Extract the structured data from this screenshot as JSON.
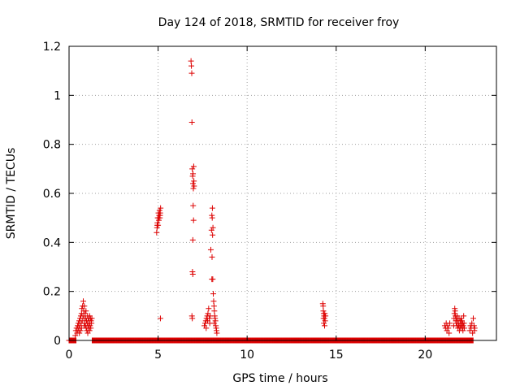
{
  "chart_data": {
    "type": "scatter",
    "title": "Day 124 of 2018, SRMTID for receiver froy",
    "xlabel": "GPS time / hours",
    "ylabel": "SRMTID / TECUs",
    "xlim": [
      0,
      24
    ],
    "ylim": [
      0,
      1.2
    ],
    "grid": true,
    "legend": "none",
    "marker": "+",
    "color": "#dd0000",
    "x_ticks": [
      0,
      5,
      10,
      15,
      20
    ],
    "x_tick_labels": [
      "0",
      "5",
      "10",
      "15",
      "20"
    ],
    "y_ticks": [
      0,
      0.2,
      0.4,
      0.6,
      0.8,
      1.0,
      1.2
    ],
    "y_tick_labels": [
      "0",
      "0.2",
      "0.4",
      "0.6",
      "0.8",
      "1",
      "1.2"
    ],
    "baseline": {
      "y": 0.0,
      "segments": [
        [
          0.0,
          0.4
        ],
        [
          1.3,
          22.7
        ]
      ],
      "step": 0.03
    },
    "series": [
      {
        "name": "SRMTID",
        "points": [
          [
            0.35,
            0.02
          ],
          [
            0.38,
            0.04
          ],
          [
            0.42,
            0.05
          ],
          [
            0.45,
            0.03
          ],
          [
            0.48,
            0.06
          ],
          [
            0.5,
            0.04
          ],
          [
            0.52,
            0.07
          ],
          [
            0.55,
            0.05
          ],
          [
            0.57,
            0.08
          ],
          [
            0.6,
            0.06
          ],
          [
            0.62,
            0.09
          ],
          [
            0.64,
            0.04
          ],
          [
            0.66,
            0.1
          ],
          [
            0.68,
            0.07
          ],
          [
            0.7,
            0.11
          ],
          [
            0.72,
            0.13
          ],
          [
            0.74,
            0.08
          ],
          [
            0.76,
            0.14
          ],
          [
            0.78,
            0.1
          ],
          [
            0.8,
            0.16
          ],
          [
            0.82,
            0.12
          ],
          [
            0.84,
            0.09
          ],
          [
            0.86,
            0.14
          ],
          [
            0.88,
            0.07
          ],
          [
            0.9,
            0.11
          ],
          [
            0.92,
            0.06
          ],
          [
            0.94,
            0.09
          ],
          [
            0.96,
            0.05
          ],
          [
            0.98,
            0.08
          ],
          [
            1.0,
            0.04
          ],
          [
            1.02,
            0.07
          ],
          [
            1.04,
            0.1
          ],
          [
            1.06,
            0.06
          ],
          [
            1.08,
            0.09
          ],
          [
            1.1,
            0.05
          ],
          [
            1.12,
            0.08
          ],
          [
            1.14,
            0.07
          ],
          [
            1.16,
            0.1
          ],
          [
            1.18,
            0.06
          ],
          [
            1.2,
            0.09
          ],
          [
            1.22,
            0.05
          ],
          [
            1.24,
            0.08
          ],
          [
            1.26,
            0.07
          ],
          [
            1.28,
            0.09
          ],
          [
            0.58,
            0.03
          ],
          [
            0.7,
            0.05
          ],
          [
            0.85,
            0.06
          ],
          [
            0.95,
            0.12
          ],
          [
            1.05,
            0.03
          ],
          [
            1.15,
            0.04
          ],
          [
            4.92,
            0.44
          ],
          [
            4.94,
            0.46
          ],
          [
            4.96,
            0.48
          ],
          [
            4.98,
            0.5
          ],
          [
            5.0,
            0.47
          ],
          [
            5.02,
            0.52
          ],
          [
            5.04,
            0.49
          ],
          [
            5.06,
            0.51
          ],
          [
            5.08,
            0.53
          ],
          [
            5.1,
            0.5
          ],
          [
            5.12,
            0.52
          ],
          [
            5.14,
            0.54
          ],
          [
            4.95,
            0.47
          ],
          [
            5.03,
            0.5
          ],
          [
            5.11,
            0.51
          ],
          [
            5.13,
            0.09
          ],
          [
            6.85,
            1.14
          ],
          [
            6.87,
            1.12
          ],
          [
            6.89,
            1.09
          ],
          [
            6.9,
            0.89
          ],
          [
            6.92,
            0.7
          ],
          [
            6.94,
            0.67
          ],
          [
            6.96,
            0.64
          ],
          [
            6.98,
            0.62
          ],
          [
            7.0,
            0.71
          ],
          [
            6.97,
            0.55
          ],
          [
            6.99,
            0.49
          ],
          [
            6.95,
            0.41
          ],
          [
            6.93,
            0.28
          ],
          [
            6.95,
            0.27
          ],
          [
            6.9,
            0.1
          ],
          [
            6.92,
            0.09
          ],
          [
            6.96,
            0.68
          ],
          [
            7.01,
            0.65
          ],
          [
            7.02,
            0.63
          ],
          [
            7.6,
            0.06
          ],
          [
            7.64,
            0.07
          ],
          [
            7.68,
            0.08
          ],
          [
            7.72,
            0.09
          ],
          [
            7.76,
            0.1
          ],
          [
            7.8,
            0.11
          ],
          [
            7.84,
            0.13
          ],
          [
            7.88,
            0.09
          ],
          [
            7.92,
            0.1
          ],
          [
            7.96,
            0.37
          ],
          [
            8.0,
            0.45
          ],
          [
            8.02,
            0.51
          ],
          [
            8.04,
            0.5
          ],
          [
            8.05,
            0.54
          ],
          [
            8.06,
            0.43
          ],
          [
            8.08,
            0.46
          ],
          [
            8.03,
            0.34
          ],
          [
            8.07,
            0.25
          ],
          [
            8.02,
            0.25
          ],
          [
            8.1,
            0.19
          ],
          [
            8.12,
            0.16
          ],
          [
            8.14,
            0.14
          ],
          [
            8.16,
            0.12
          ],
          [
            8.18,
            0.1
          ],
          [
            8.2,
            0.09
          ],
          [
            8.22,
            0.08
          ],
          [
            8.24,
            0.06
          ],
          [
            8.26,
            0.05
          ],
          [
            8.28,
            0.04
          ],
          [
            8.3,
            0.03
          ],
          [
            7.7,
            0.05
          ],
          [
            7.78,
            0.08
          ],
          [
            7.9,
            0.07
          ],
          [
            8.15,
            0.07
          ],
          [
            14.25,
            0.15
          ],
          [
            14.27,
            0.14
          ],
          [
            14.28,
            0.12
          ],
          [
            14.3,
            0.11
          ],
          [
            14.32,
            0.1
          ],
          [
            14.34,
            0.09
          ],
          [
            14.36,
            0.11
          ],
          [
            14.38,
            0.08
          ],
          [
            14.4,
            0.1
          ],
          [
            14.31,
            0.07
          ],
          [
            14.35,
            0.06
          ],
          [
            14.29,
            0.09
          ],
          [
            21.1,
            0.06
          ],
          [
            21.14,
            0.05
          ],
          [
            21.18,
            0.07
          ],
          [
            21.22,
            0.04
          ],
          [
            21.26,
            0.06
          ],
          [
            21.3,
            0.05
          ],
          [
            21.34,
            0.03
          ],
          [
            21.38,
            0.07
          ],
          [
            21.6,
            0.06
          ],
          [
            21.62,
            0.09
          ],
          [
            21.64,
            0.11
          ],
          [
            21.66,
            0.13
          ],
          [
            21.68,
            0.12
          ],
          [
            21.7,
            0.1
          ],
          [
            21.72,
            0.08
          ],
          [
            21.74,
            0.07
          ],
          [
            21.76,
            0.09
          ],
          [
            21.78,
            0.06
          ],
          [
            21.8,
            0.1
          ],
          [
            21.82,
            0.08
          ],
          [
            21.84,
            0.05
          ],
          [
            21.86,
            0.07
          ],
          [
            21.88,
            0.06
          ],
          [
            21.9,
            0.09
          ],
          [
            21.92,
            0.04
          ],
          [
            21.94,
            0.06
          ],
          [
            21.96,
            0.08
          ],
          [
            21.98,
            0.05
          ],
          [
            22.0,
            0.07
          ],
          [
            22.02,
            0.09
          ],
          [
            22.04,
            0.06
          ],
          [
            22.06,
            0.08
          ],
          [
            22.08,
            0.05
          ],
          [
            22.1,
            0.07
          ],
          [
            22.12,
            0.04
          ],
          [
            22.14,
            0.06
          ],
          [
            22.16,
            0.1
          ],
          [
            22.18,
            0.07
          ],
          [
            22.2,
            0.05
          ],
          [
            22.5,
            0.04
          ],
          [
            22.54,
            0.06
          ],
          [
            22.58,
            0.05
          ],
          [
            22.62,
            0.07
          ],
          [
            22.66,
            0.03
          ],
          [
            22.7,
            0.09
          ],
          [
            22.74,
            0.06
          ],
          [
            22.76,
            0.04
          ],
          [
            22.78,
            0.05
          ]
        ]
      }
    ]
  }
}
